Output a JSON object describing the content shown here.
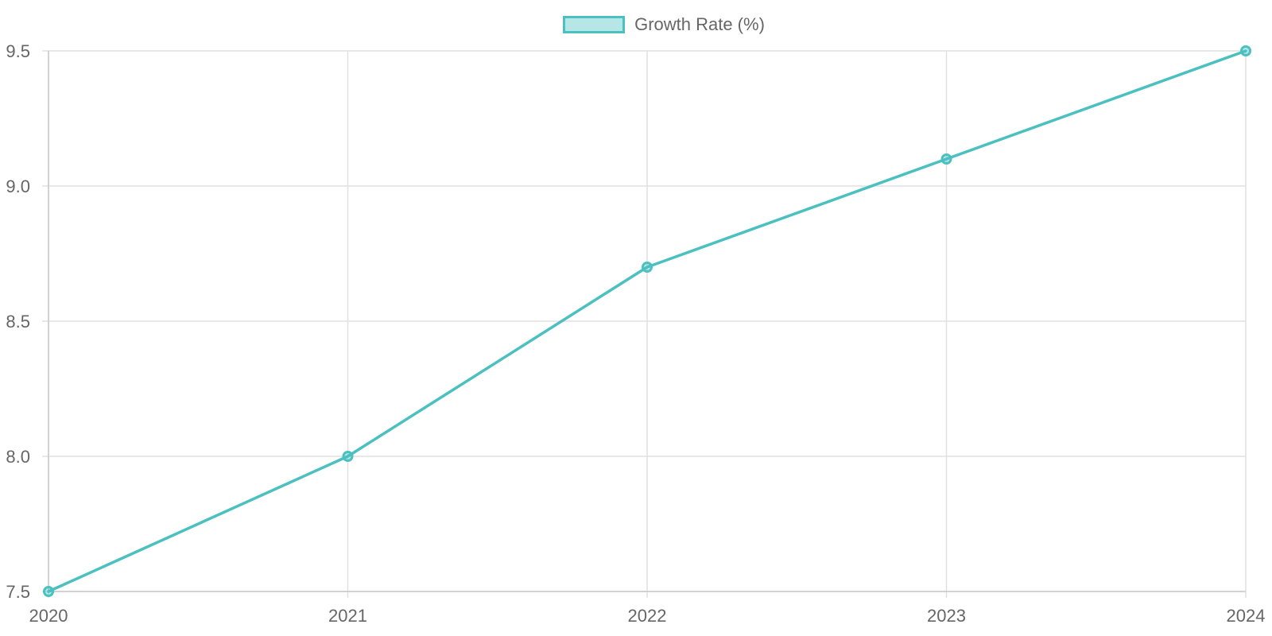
{
  "chart_data": {
    "type": "line",
    "x": [
      "2020",
      "2021",
      "2022",
      "2023",
      "2024"
    ],
    "series": [
      {
        "name": "Growth Rate (%)",
        "values": [
          7.5,
          8.0,
          8.7,
          9.1,
          9.5
        ],
        "color": "#4bc0c0"
      }
    ],
    "y_ticks": [
      "7.5",
      "8.0",
      "8.5",
      "9.0",
      "9.5"
    ],
    "ylim": [
      7.5,
      9.5
    ],
    "grid": true,
    "legend_position": "top-center"
  }
}
